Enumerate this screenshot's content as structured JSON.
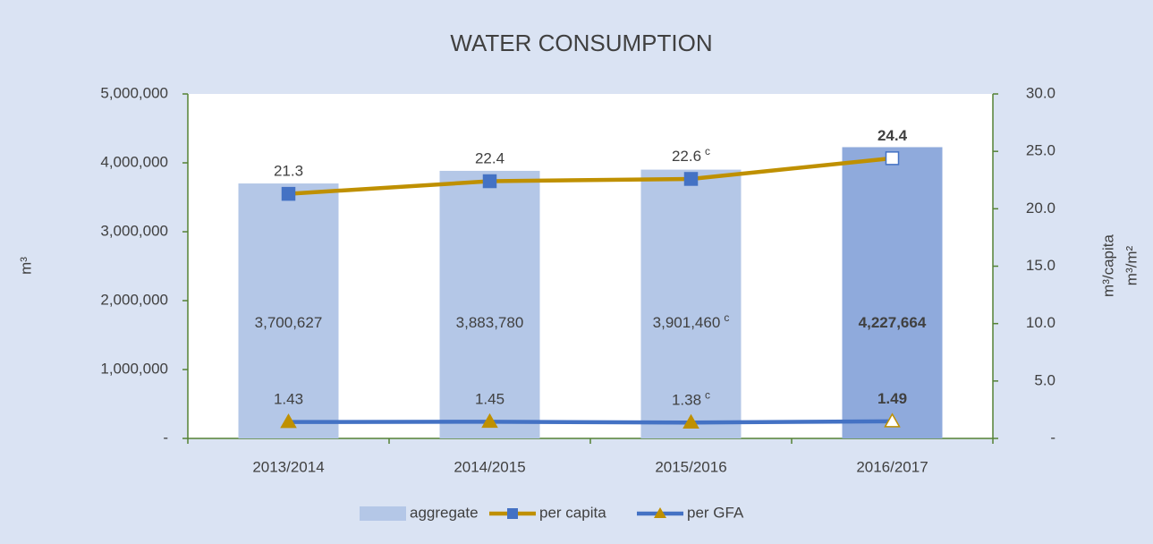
{
  "chart_data": {
    "type": "bar_line",
    "title": "WATER CONSUMPTION",
    "categories": [
      "2013/2014",
      "2014/2015",
      "2015/2016",
      "2016/2017"
    ],
    "y_label": "m³",
    "y2_label": [
      "m³/capita",
      "m³/m²"
    ],
    "ylim": [
      0,
      5000000
    ],
    "yticks": [
      {
        "value": 0,
        "label": "-"
      },
      {
        "value": 1000000,
        "label": "1,000,000"
      },
      {
        "value": 2000000,
        "label": "2,000,000"
      },
      {
        "value": 3000000,
        "label": "3,000,000"
      },
      {
        "value": 4000000,
        "label": "4,000,000"
      },
      {
        "value": 5000000,
        "label": "5,000,000"
      }
    ],
    "y2lim": [
      0,
      30
    ],
    "y2ticks": [
      {
        "value": 0,
        "label": "-"
      },
      {
        "value": 5,
        "label": "5.0"
      },
      {
        "value": 10,
        "label": "10.0"
      },
      {
        "value": 15,
        "label": "15.0"
      },
      {
        "value": 20,
        "label": "20.0"
      },
      {
        "value": 25,
        "label": "25.0"
      },
      {
        "value": 30,
        "label": "30.0"
      }
    ],
    "legend": "bottom",
    "emphasis": [
      false,
      false,
      false,
      true
    ],
    "series": [
      {
        "name": "aggregate",
        "kind": "bar",
        "color": "#b4c7e7",
        "emphasis_color": "#8faadc",
        "values": [
          3700627,
          3883780,
          3901460,
          4227664
        ],
        "value_labels": [
          "3,700,627",
          "3,883,780",
          "3,901,460",
          "4,227,664"
        ],
        "notes": [
          null,
          null,
          "c",
          null
        ]
      },
      {
        "name": "per capita",
        "kind": "line",
        "axis": "y2",
        "color": "#bf9000",
        "marker": "square",
        "marker_color": "#4472c4",
        "values": [
          21.3,
          22.4,
          22.6,
          24.4
        ],
        "notes": [
          null,
          null,
          "c",
          null
        ]
      },
      {
        "name": "per GFA",
        "kind": "line",
        "axis": "y2",
        "color": "#4472c4",
        "marker": "triangle",
        "marker_color": "#bf9000",
        "values": [
          1.43,
          1.45,
          1.38,
          1.49
        ],
        "notes": [
          null,
          null,
          "c",
          null
        ]
      }
    ]
  }
}
